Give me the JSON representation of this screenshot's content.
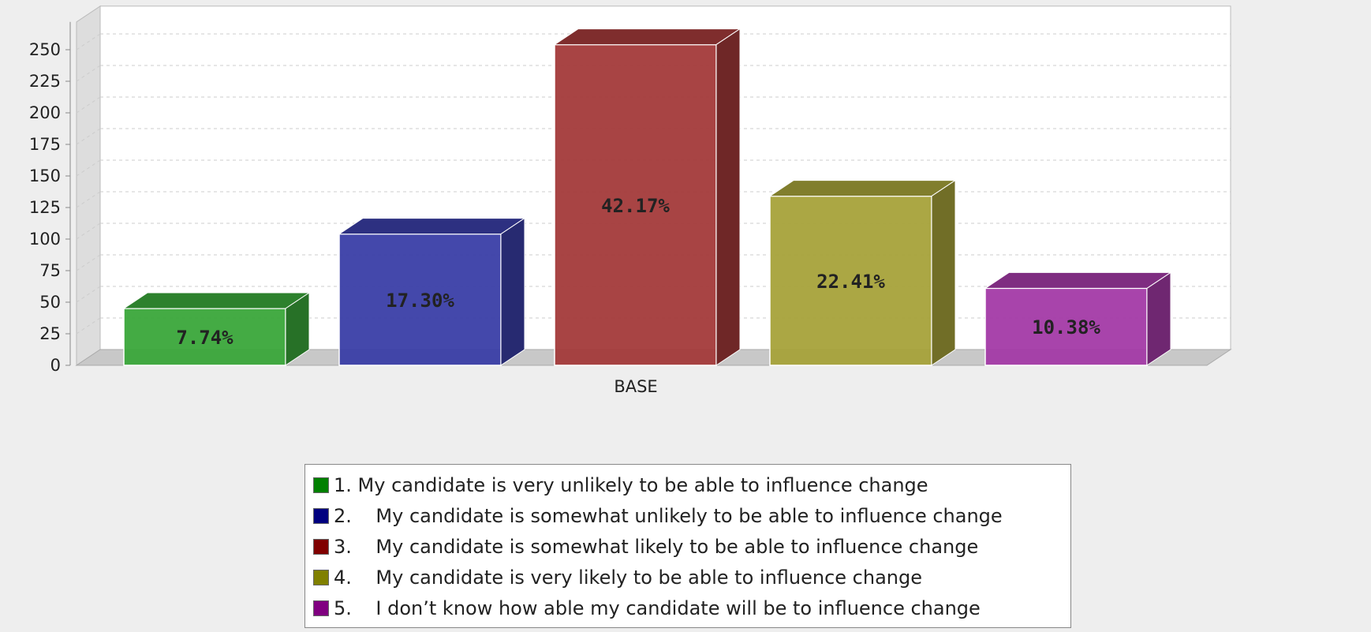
{
  "chart_data": {
    "type": "bar",
    "categories": [
      "BASE"
    ],
    "ylim": [
      0,
      250
    ],
    "yticks": [
      0,
      25,
      50,
      75,
      100,
      125,
      150,
      175,
      200,
      225,
      250
    ],
    "grid": true,
    "legend_position": "bottom",
    "series": [
      {
        "name": "1. My candidate is very unlikely to be able to influence change",
        "values": [
          45
        ],
        "label": "7.74%",
        "color": "#3aa63a"
      },
      {
        "name": "2.    My candidate is somewhat unlikely to be able to influence change",
        "values": [
          104
        ],
        "label": "17.30%",
        "color": "#3a3ea6"
      },
      {
        "name": "3.    My candidate is somewhat likely to be able to influence change",
        "values": [
          254
        ],
        "label": "42.17%",
        "color": "#a33a3a"
      },
      {
        "name": "4.    My candidate is very likely to be able to influence change",
        "values": [
          134
        ],
        "label": "22.41%",
        "color": "#a6a23a"
      },
      {
        "name": "5.    I don’t know how able my candidate will be to influence change",
        "values": [
          61
        ],
        "label": "10.38%",
        "color": "#a33aa6"
      }
    ]
  },
  "legend": {
    "swatch_colors": [
      "#008000",
      "#000080",
      "#800000",
      "#808000",
      "#800080"
    ]
  }
}
